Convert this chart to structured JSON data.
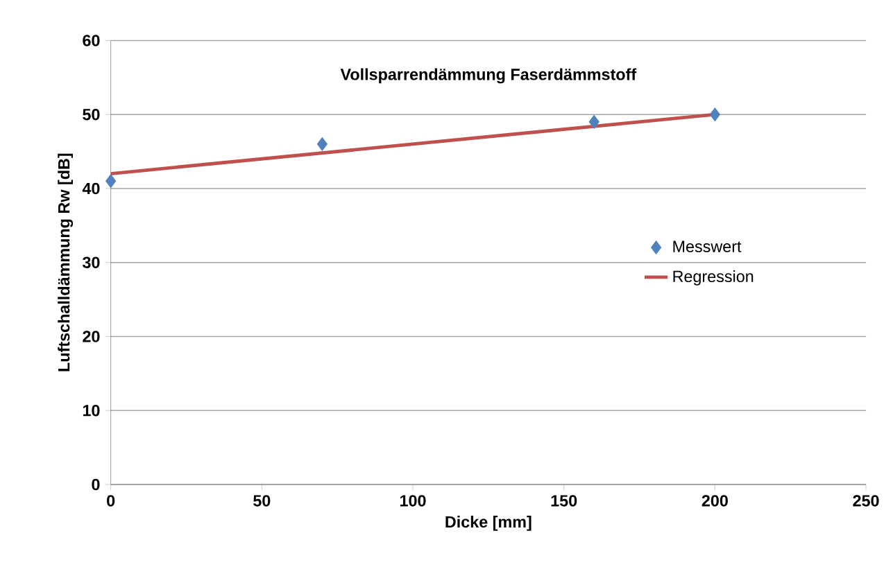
{
  "chart_data": {
    "type": "scatter",
    "title": "Vollsparrendämmung  Faserdämmstoff",
    "xlabel": "Dicke [mm]",
    "ylabel": "Luftschalldämmung Rw [dB]",
    "series": [
      {
        "name": "Messwert",
        "color": "#4f81bd",
        "x": [
          0,
          70,
          160,
          200
        ],
        "values": [
          41,
          46,
          49,
          50
        ],
        "marker": "diamond"
      },
      {
        "name": "Regression",
        "type": "line",
        "color": "#c0504d",
        "x": [
          0,
          200
        ],
        "values": [
          42,
          50
        ],
        "marker": "none"
      }
    ],
    "xlim": [
      0,
      250
    ],
    "ylim": [
      0,
      60
    ],
    "xticks": [
      0,
      50,
      100,
      150,
      200,
      250
    ],
    "yticks": [
      0,
      10,
      20,
      30,
      40,
      50,
      60
    ],
    "grid": "y",
    "legend": "right"
  }
}
